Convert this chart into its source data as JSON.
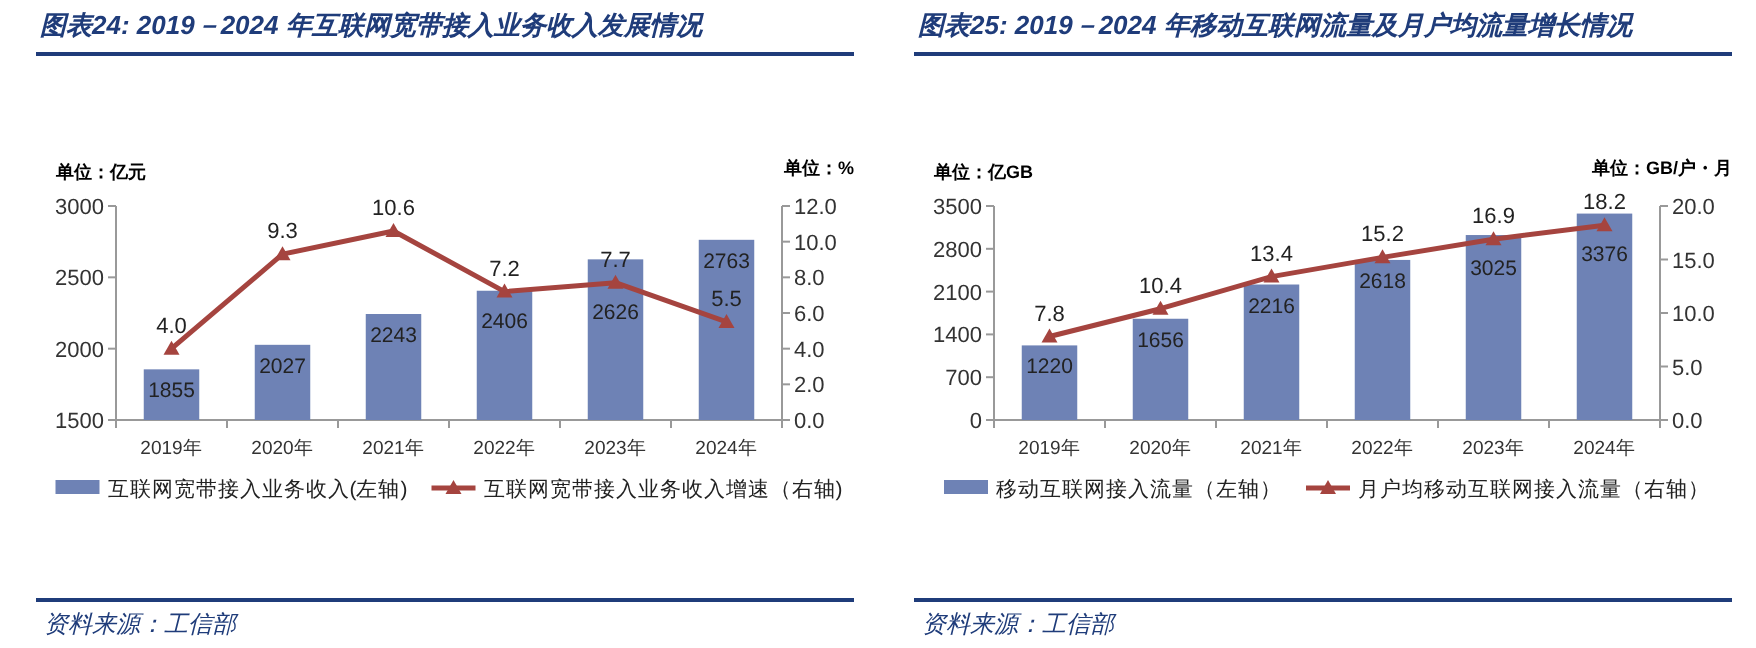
{
  "chart_data": [
    {
      "type": "bar",
      "title": "图表24:  2019－2024 年互联网宽带接入业务收入发展情况",
      "ylabel": "单位：亿元",
      "y2label": "单位：%",
      "categories": [
        "2019年",
        "2020年",
        "2021年",
        "2022年",
        "2023年",
        "2024年"
      ],
      "series": [
        {
          "name": "互联网宽带接入业务收入(左轴)",
          "color": "#6e82b5",
          "values": [
            1855,
            2027,
            2243,
            2406,
            2626,
            2763
          ]
        },
        {
          "name": "互联网宽带接入业务收入增速（右轴)",
          "type": "line",
          "axis": "y2",
          "color": "#a5443f",
          "values": [
            4.0,
            9.3,
            10.6,
            7.2,
            7.7,
            5.5
          ],
          "value_labels": [
            "4.0",
            "9.3",
            "10.6",
            "7.2",
            "7.7",
            "5.5"
          ]
        }
      ],
      "ylim": [
        1500,
        3000
      ],
      "yticks": [
        1500,
        2000,
        2500,
        3000
      ],
      "y2lim": [
        0,
        12
      ],
      "y2ticks": [
        {
          "value": 0,
          "label": "0.0"
        },
        {
          "value": 2,
          "label": "2.0"
        },
        {
          "value": 4,
          "label": "4.0"
        },
        {
          "value": 6,
          "label": "6.0"
        },
        {
          "value": 8,
          "label": "8.0"
        },
        {
          "value": 10,
          "label": "10.0"
        },
        {
          "value": 12,
          "label": "12.0"
        }
      ],
      "marker": "triangle",
      "data_labels": true,
      "legend": "bottom",
      "annotations": [
        "资料来源：工信部"
      ]
    },
    {
      "type": "bar",
      "title": "图表25:  2019－2024 年移动互联网流量及月户均流量增长情况",
      "ylabel": "单位：亿GB",
      "y2label": "单位：GB/户・月",
      "categories": [
        "2019年",
        "2020年",
        "2021年",
        "2022年",
        "2023年",
        "2024年"
      ],
      "series": [
        {
          "name": "移动互联网接入流量（左轴）",
          "color": "#6e82b5",
          "values": [
            1220,
            1656,
            2216,
            2618,
            3025,
            3376
          ]
        },
        {
          "name": "月户均移动互联网接入流量（右轴）",
          "type": "line",
          "axis": "y2",
          "color": "#a5443f",
          "values": [
            7.8,
            10.4,
            13.4,
            15.2,
            16.9,
            18.2
          ]
        }
      ],
      "ylim": [
        0,
        3500
      ],
      "yticks": [
        0,
        700,
        1400,
        2100,
        2800,
        3500
      ],
      "y2lim": [
        0,
        20
      ],
      "y2ticks": [
        {
          "value": 0,
          "label": "0.0"
        },
        {
          "value": 5,
          "label": "5.0"
        },
        {
          "value": 10,
          "label": "10.0"
        },
        {
          "value": 15,
          "label": "15.0"
        },
        {
          "value": 20,
          "label": "20.0"
        }
      ],
      "marker": "triangle",
      "data_labels": true,
      "legend": "bottom",
      "annotations": [
        "资料来源：工信部"
      ]
    }
  ]
}
